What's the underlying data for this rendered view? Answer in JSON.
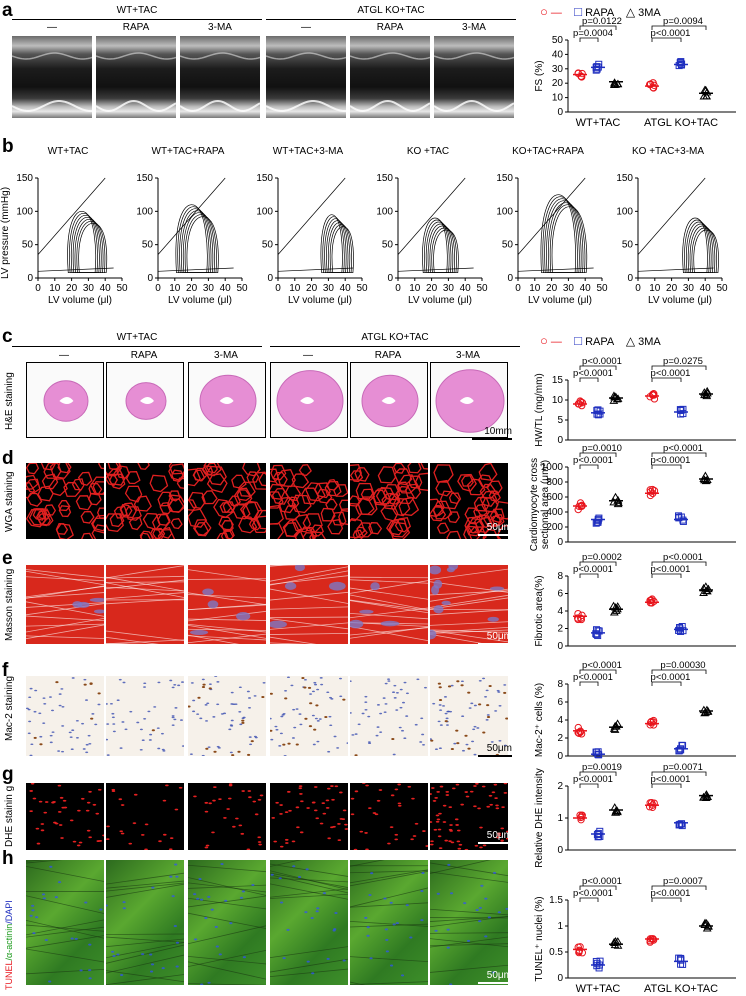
{
  "panels": {
    "a": "a",
    "b": "b",
    "c": "c",
    "d": "d",
    "e": "e",
    "f": "f",
    "g": "g",
    "h": "h"
  },
  "groups": {
    "wt": "WT+TAC",
    "ko": "ATGL KO+TAC"
  },
  "conditions": [
    "—",
    "RAPA",
    "3-MA",
    "—",
    "RAPA",
    "3-MA"
  ],
  "legend": {
    "ctrl": "—",
    "rapa": "RAPA",
    "ma": "3MA"
  },
  "row_labels": {
    "c": "H&E staining",
    "d": "WGA staining",
    "e": "Masson staining",
    "f": "Mac-2 staining",
    "g": "DHE stainin g",
    "h_tunel": "TUNEL",
    "h_actinin": "/α-actinin",
    "h_dapi": "/DAPI"
  },
  "scale_bars": {
    "c": "10mm",
    "d": "50μm",
    "e": "50μm",
    "f": "50μm",
    "g": "50μm",
    "h": "50μm"
  },
  "pv_titles": [
    "WT+TAC",
    "WT+TAC+RAPA",
    "WT+TAC+3-MA",
    "KO +TAC",
    "KO+TAC+RAPA",
    "KO +TAC+3-MA"
  ],
  "pv_axes": {
    "xlabel": "LV volume (μl)",
    "ylabel": "LV pressure (mmHg)",
    "xticks": [
      "0",
      "10",
      "20",
      "30",
      "40",
      "50"
    ],
    "yticks": [
      "0",
      "50",
      "100",
      "150"
    ]
  },
  "chart_data": [
    {
      "type": "scatter",
      "id": "fs",
      "ylabel": "FS (%)",
      "ylim": [
        0,
        50
      ],
      "yticks": [
        0,
        10,
        20,
        30,
        40,
        50
      ],
      "categories": [
        "WT+TAC",
        "ATGL KO+TAC"
      ],
      "series": [
        {
          "name": "—",
          "means": [
            26,
            18
          ]
        },
        {
          "name": "RAPA",
          "means": [
            31,
            33
          ]
        },
        {
          "name": "3MA",
          "means": [
            21,
            13
          ]
        }
      ],
      "pvalues": [
        {
          "text": "p=0.0004",
          "group": 0,
          "pair": "ctrl-rapa"
        },
        {
          "text": "p=0.0122",
          "group": 0,
          "pair": "ctrl-ma"
        },
        {
          "text": "p<0.0001",
          "group": 1,
          "pair": "ctrl-rapa"
        },
        {
          "text": "p=0.0094",
          "group": 1,
          "pair": "ctrl-ma"
        }
      ]
    },
    {
      "type": "scatter",
      "id": "hwtl",
      "ylabel": "HW/TL (mg/mm)",
      "ylim": [
        0,
        15
      ],
      "yticks": [
        0,
        5,
        10,
        15
      ],
      "series": [
        {
          "name": "—",
          "means": [
            9,
            11
          ]
        },
        {
          "name": "RAPA",
          "means": [
            6.8,
            7
          ]
        },
        {
          "name": "3MA",
          "means": [
            10.5,
            11.5
          ]
        }
      ],
      "pvalues": [
        {
          "text": "p<0.0001",
          "group": 0,
          "pair": "ctrl-rapa"
        },
        {
          "text": "p<0.0001",
          "group": 0,
          "pair": "ctrl-ma"
        },
        {
          "text": "p<0.0001",
          "group": 1,
          "pair": "ctrl-rapa"
        },
        {
          "text": "p=0.0275",
          "group": 1,
          "pair": "ctrl-ma"
        }
      ]
    },
    {
      "type": "scatter",
      "id": "csa",
      "ylabel": "Cardiomyocyte cross-sectional area (μm²)",
      "ylim": [
        0,
        1000
      ],
      "yticks": [
        0,
        200,
        400,
        600,
        800,
        1000
      ],
      "series": [
        {
          "name": "—",
          "means": [
            480,
            650
          ]
        },
        {
          "name": "RAPA",
          "means": [
            300,
            300
          ]
        },
        {
          "name": "3MA",
          "means": [
            550,
            840
          ]
        }
      ],
      "pvalues": [
        {
          "text": "p<0.0001",
          "group": 0,
          "pair": "ctrl-rapa"
        },
        {
          "text": "p=0.0010",
          "group": 0,
          "pair": "ctrl-ma"
        },
        {
          "text": "p<0.0001",
          "group": 1,
          "pair": "ctrl-rapa"
        },
        {
          "text": "p<0.0001",
          "group": 1,
          "pair": "ctrl-ma"
        }
      ]
    },
    {
      "type": "scatter",
      "id": "fib",
      "ylabel": "Fibrotic area(%)",
      "ylim": [
        0,
        8
      ],
      "yticks": [
        0,
        2,
        4,
        6,
        8
      ],
      "series": [
        {
          "name": "—",
          "means": [
            3.4,
            5
          ]
        },
        {
          "name": "RAPA",
          "means": [
            1.5,
            1.9
          ]
        },
        {
          "name": "3MA",
          "means": [
            4.2,
            6.4
          ]
        }
      ],
      "pvalues": [
        {
          "text": "p<0.0001",
          "group": 0,
          "pair": "ctrl-rapa"
        },
        {
          "text": "p=0.0002",
          "group": 0,
          "pair": "ctrl-ma"
        },
        {
          "text": "p<0.0001",
          "group": 1,
          "pair": "ctrl-rapa"
        },
        {
          "text": "p<0.0001",
          "group": 1,
          "pair": "ctrl-ma"
        }
      ]
    },
    {
      "type": "scatter",
      "id": "mac",
      "ylabel": "Mac-2⁺ cells (%)",
      "ylim": [
        0,
        8
      ],
      "yticks": [
        0,
        2,
        4,
        6,
        8
      ],
      "series": [
        {
          "name": "—",
          "means": [
            2.8,
            3.6
          ]
        },
        {
          "name": "RAPA",
          "means": [
            0.2,
            0.8
          ]
        },
        {
          "name": "3MA",
          "means": [
            3.2,
            5
          ]
        }
      ],
      "pvalues": [
        {
          "text": "p<0.0001",
          "group": 0,
          "pair": "ctrl-rapa"
        },
        {
          "text": "p<0.0001",
          "group": 0,
          "pair": "ctrl-ma"
        },
        {
          "text": "p<0.0001",
          "group": 1,
          "pair": "ctrl-rapa"
        },
        {
          "text": "p=0.00030",
          "group": 1,
          "pair": "ctrl-ma"
        }
      ]
    },
    {
      "type": "scatter",
      "id": "dhe",
      "ylabel": "Relative DHE intensity",
      "ylim": [
        0,
        2
      ],
      "yticks": [
        0,
        1,
        2
      ],
      "series": [
        {
          "name": "—",
          "means": [
            1.0,
            1.4
          ]
        },
        {
          "name": "RAPA",
          "means": [
            0.5,
            0.85
          ]
        },
        {
          "name": "3MA",
          "means": [
            1.25,
            1.7
          ]
        }
      ],
      "pvalues": [
        {
          "text": "p<0.0001",
          "group": 0,
          "pair": "ctrl-rapa"
        },
        {
          "text": "p=0.0019",
          "group": 0,
          "pair": "ctrl-ma"
        },
        {
          "text": "p<0.0001",
          "group": 1,
          "pair": "ctrl-rapa"
        },
        {
          "text": "p=0.0071",
          "group": 1,
          "pair": "ctrl-ma"
        }
      ]
    },
    {
      "type": "scatter",
      "id": "tunel",
      "ylabel": "TUNEL⁺ nuclei (%)",
      "ylim": [
        0,
        1.5
      ],
      "yticks": [
        0,
        0.5,
        1.0,
        1.5
      ],
      "categories": [
        "WT+TAC",
        "ATGL KO+TAC"
      ],
      "series": [
        {
          "name": "—",
          "means": [
            0.55,
            0.75
          ]
        },
        {
          "name": "RAPA",
          "means": [
            0.25,
            0.32
          ]
        },
        {
          "name": "3MA",
          "means": [
            0.65,
            1.0
          ]
        }
      ],
      "pvalues": [
        {
          "text": "p<0.0001",
          "group": 0,
          "pair": "ctrl-rapa"
        },
        {
          "text": "p<0.0001",
          "group": 0,
          "pair": "ctrl-ma"
        },
        {
          "text": "p<0.0001",
          "group": 1,
          "pair": "ctrl-rapa"
        },
        {
          "text": "p=0.0007",
          "group": 1,
          "pair": "ctrl-ma"
        }
      ]
    }
  ],
  "colors": {
    "ctrl": "#e8141c",
    "rapa": "#1f2fbf",
    "ma": "#000000"
  }
}
